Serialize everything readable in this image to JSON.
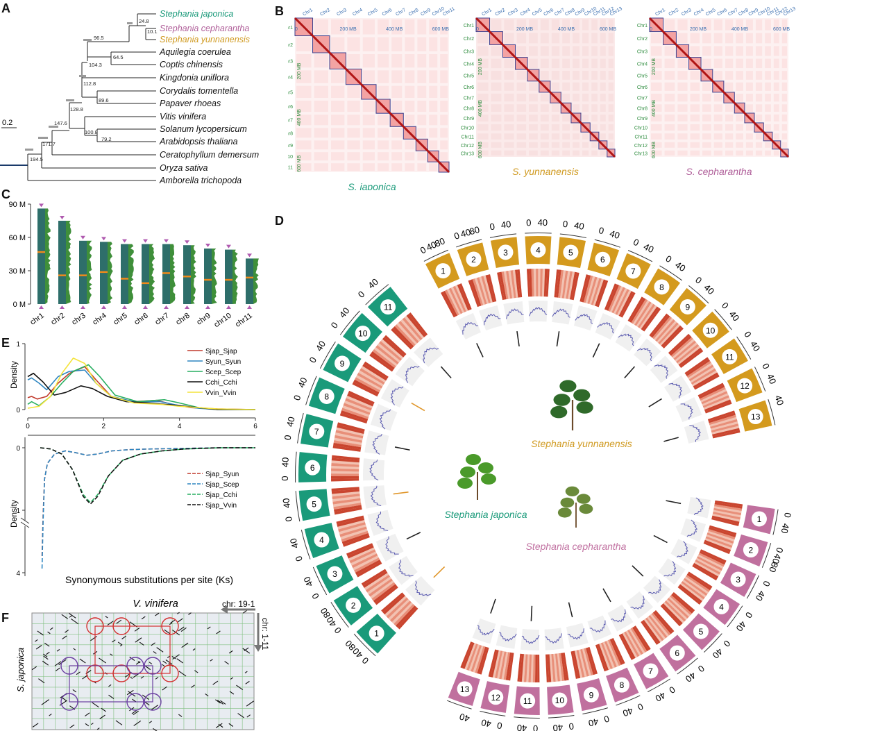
{
  "panels": {
    "A": "A",
    "B": "B",
    "C": "C",
    "D": "D",
    "E": "E",
    "F": "F"
  },
  "tree": {
    "scale_label": "0.2",
    "taxa": [
      {
        "name": "Stephania japonica",
        "color": "#1a9a7a"
      },
      {
        "name": "Stephania cepharantha",
        "color": "#b0609a"
      },
      {
        "name": "Stephania yunnanensis",
        "color": "#d09a20"
      },
      {
        "name": "Aquilegia coerulea",
        "color": "#111111"
      },
      {
        "name": "Coptis chinensis",
        "color": "#111111"
      },
      {
        "name": "Kingdonia uniflora",
        "color": "#111111"
      },
      {
        "name": "Corydalis tomentella",
        "color": "#111111"
      },
      {
        "name": "Papaver rhoeas",
        "color": "#111111"
      },
      {
        "name": "Vitis vinifera",
        "color": "#111111"
      },
      {
        "name": "Solanum lycopersicum",
        "color": "#111111"
      },
      {
        "name": "Arabidopsis thaliana",
        "color": "#111111"
      },
      {
        "name": "Ceratophyllum demersum",
        "color": "#111111"
      },
      {
        "name": "Oryza sativa",
        "color": "#111111"
      },
      {
        "name": "Amborella trichopoda",
        "color": "#111111"
      }
    ],
    "node_ages": [
      "24.8",
      "10.1",
      "96.5",
      "64.5",
      "104.3",
      "112.8",
      "89.6",
      "128.8",
      "147.6",
      "100.8",
      "79.2",
      "171.7",
      "194.5"
    ]
  },
  "hic": [
    {
      "species": "S. japonica",
      "color": "#1a9a7a",
      "chrs": [
        "Chr1",
        "Chr2",
        "Chr3",
        "Chr4",
        "Chr5",
        "Chr6",
        "Chr7",
        "Chr8",
        "Chr9",
        "Chr10",
        "Chr11"
      ],
      "axis_top": [
        "0",
        "200 MB",
        "400 MB",
        "600 MB"
      ],
      "axis_left": [
        "200 MB",
        "400 MB",
        "600 MB"
      ]
    },
    {
      "species": "S. yunnanensis",
      "color": "#d09a20",
      "chrs": [
        "Chr1",
        "Chr2",
        "Chr3",
        "Chr4",
        "Chr5",
        "Chr6",
        "Chr7",
        "Chr8",
        "Chr9",
        "Chr10",
        "Chr11",
        "Chr12",
        "Chr13"
      ],
      "axis_top": [
        "0",
        "200 MB",
        "400 MB",
        "600 MB"
      ],
      "axis_left": [
        "200 MB",
        "400 MB",
        "600 MB"
      ]
    },
    {
      "species": "S. cepharantha",
      "color": "#b0609a",
      "chrs": [
        "Chr1",
        "Chr2",
        "Chr3",
        "Chr4",
        "Chr5",
        "Chr6",
        "Chr7",
        "Chr8",
        "Chr9",
        "Chr10",
        "Chr11",
        "Chr12",
        "Chr13"
      ],
      "axis_top": [
        "0",
        "200 MB",
        "400 MB",
        "600 MB"
      ],
      "axis_left": [
        "200 MB",
        "400 MB",
        "600 MB"
      ]
    }
  ],
  "chart_data": [
    {
      "type": "bar",
      "panel": "C",
      "categories": [
        "chr1",
        "chr2",
        "chr3",
        "chr4",
        "chr5",
        "chr6",
        "chr7",
        "chr8",
        "chr9",
        "chr10",
        "chr11"
      ],
      "values": [
        86,
        75,
        57,
        56,
        54,
        54,
        54,
        53,
        50,
        49,
        41
      ],
      "centromere": [
        47,
        26,
        26,
        29,
        23,
        19,
        28,
        25,
        22,
        22,
        24
      ],
      "yticks": [
        "0 M",
        "30 M",
        "60 M",
        "90 M"
      ],
      "ylim": [
        0,
        90
      ]
    },
    {
      "type": "line",
      "panel": "E-top",
      "ylabel": "Density",
      "xticks": [
        "0",
        "2",
        "4",
        "6"
      ],
      "yticks": [
        "0",
        "1"
      ],
      "series": [
        {
          "name": "Sjap_Sjap",
          "color": "#c0392b",
          "x": [
            0,
            0.1,
            0.25,
            0.5,
            0.8,
            1.1,
            1.5,
            1.8,
            2.2,
            2.8,
            3.4,
            3.8,
            4.3,
            5,
            6
          ],
          "y": [
            0.18,
            0.2,
            0.16,
            0.2,
            0.4,
            0.55,
            0.65,
            0.45,
            0.2,
            0.12,
            0.14,
            0.08,
            0.03,
            0.01,
            0
          ]
        },
        {
          "name": "Syun_Syun",
          "color": "#2e86c1",
          "x": [
            0,
            0.1,
            0.3,
            0.5,
            0.8,
            1.1,
            1.5,
            1.8,
            2.2,
            2.8,
            3.5,
            4,
            4.5,
            5,
            6
          ],
          "y": [
            0.45,
            0.48,
            0.4,
            0.3,
            0.5,
            0.58,
            0.6,
            0.4,
            0.2,
            0.12,
            0.12,
            0.06,
            0.02,
            0,
            0
          ]
        },
        {
          "name": "Scep_Scep",
          "color": "#27ae60",
          "x": [
            0,
            0.1,
            0.3,
            0.6,
            0.9,
            1.2,
            1.6,
            1.9,
            2.3,
            2.9,
            3.6,
            4,
            4.5,
            5,
            6
          ],
          "y": [
            0.08,
            0.12,
            0.06,
            0.2,
            0.4,
            0.58,
            0.68,
            0.5,
            0.22,
            0.12,
            0.15,
            0.1,
            0.03,
            0,
            0
          ]
        },
        {
          "name": "Cchi_Cchi",
          "color": "#111111",
          "x": [
            0,
            0.15,
            0.4,
            0.7,
            1,
            1.4,
            1.7,
            2.1,
            2.6,
            3.2,
            3.8,
            4.5,
            5,
            6
          ],
          "y": [
            0.5,
            0.55,
            0.42,
            0.22,
            0.26,
            0.36,
            0.32,
            0.2,
            0.12,
            0.1,
            0.07,
            0.03,
            0,
            0
          ]
        },
        {
          "name": "Vvin_Vvin",
          "color": "#f4e33a",
          "x": [
            0,
            0.3,
            0.6,
            0.9,
            1.2,
            1.5,
            1.8,
            2.2,
            2.8,
            3.5,
            4,
            5,
            6
          ],
          "y": [
            0.02,
            0.05,
            0.2,
            0.55,
            0.78,
            0.7,
            0.4,
            0.2,
            0.1,
            0.08,
            0.05,
            0.01,
            0
          ]
        }
      ]
    },
    {
      "type": "line",
      "panel": "E-bottom",
      "ylabel": "Density",
      "xlabel": "Synonymous substitutions per site (Ks)",
      "yticks": [
        "0",
        "1",
        "4"
      ],
      "series": [
        {
          "name": "Sjap_Syun",
          "color": "#c0392b",
          "x": [
            0.05,
            0.08,
            0.12,
            0.2,
            0.4,
            0.7,
            1,
            1.3,
            1.6,
            2,
            2.5,
            3,
            4,
            5,
            6
          ],
          "y": [
            3.2,
            1.2,
            0.5,
            0.25,
            0.1,
            0.05,
            0.08,
            0.12,
            0.1,
            0.05,
            0.03,
            0.02,
            0.01,
            0,
            0
          ]
        },
        {
          "name": "Sjap_Scep",
          "color": "#2e86c1",
          "x": [
            0.05,
            0.08,
            0.12,
            0.2,
            0.4,
            0.7,
            1,
            1.3,
            1.6,
            2,
            2.5,
            3,
            4,
            5,
            6
          ],
          "y": [
            3.8,
            1.5,
            0.5,
            0.25,
            0.1,
            0.05,
            0.08,
            0.12,
            0.1,
            0.05,
            0.03,
            0.02,
            0.01,
            0,
            0
          ]
        },
        {
          "name": "Sjap_Cchi",
          "color": "#27ae60",
          "x": [
            0,
            0.3,
            0.6,
            0.9,
            1.2,
            1.4,
            1.6,
            1.9,
            2.3,
            2.8,
            3.4,
            4,
            5,
            6
          ],
          "y": [
            0,
            0.02,
            0.1,
            0.35,
            0.75,
            0.88,
            0.75,
            0.45,
            0.2,
            0.1,
            0.05,
            0.02,
            0,
            0
          ]
        },
        {
          "name": "Sjap_Vvin",
          "color": "#111111",
          "x": [
            0,
            0.3,
            0.6,
            0.9,
            1.2,
            1.4,
            1.6,
            1.9,
            2.3,
            2.8,
            3.4,
            4,
            5,
            6
          ],
          "y": [
            0,
            0.02,
            0.1,
            0.35,
            0.78,
            0.9,
            0.78,
            0.45,
            0.2,
            0.1,
            0.05,
            0.02,
            0,
            0
          ]
        }
      ]
    }
  ],
  "circos": {
    "yun": {
      "label": "Stephania yunnanensis",
      "color": "#d49a1e",
      "chrs": [
        "1",
        "2",
        "3",
        "4",
        "5",
        "6",
        "7",
        "8",
        "9",
        "10",
        "11",
        "12",
        "13"
      ],
      "ticks": [
        [
          "0",
          "40",
          "80"
        ],
        [
          "0",
          "40",
          "80"
        ],
        [
          "0",
          "40"
        ],
        [
          "0",
          "40"
        ],
        [
          "0",
          "40"
        ],
        [
          "0",
          "40"
        ],
        [
          "0",
          "40"
        ],
        [
          "0",
          "40"
        ],
        [
          "0",
          "40"
        ],
        [
          "0",
          "40"
        ],
        [
          "0",
          "40"
        ],
        [
          "0",
          "40"
        ],
        [
          "40"
        ]
      ]
    },
    "jap": {
      "label": "Stephania japonica",
      "color": "#1a9a7a",
      "chrs": [
        "1",
        "2",
        "3",
        "4",
        "5",
        "6",
        "7",
        "8",
        "9",
        "10",
        "11"
      ],
      "ticks": [
        [
          "0",
          "40",
          "80"
        ],
        [
          "0",
          "40",
          "80"
        ],
        [
          "0",
          "40"
        ],
        [
          "0",
          "40"
        ],
        [
          "0",
          "40"
        ],
        [
          "0",
          "40"
        ],
        [
          "0",
          "40"
        ],
        [
          "0",
          "40"
        ],
        [
          "0",
          "40"
        ],
        [
          "0",
          "40"
        ],
        [
          "0",
          "40"
        ]
      ]
    },
    "cep": {
      "label": "Stephania cepharantha",
      "color": "#c0709e",
      "chrs": [
        "1",
        "2",
        "3",
        "4",
        "5",
        "6",
        "7",
        "8",
        "9",
        "10",
        "11",
        "12",
        "13"
      ],
      "ticks": [
        [
          "0",
          "40"
        ],
        [
          "0",
          "40",
          "80"
        ],
        [
          "0",
          "40"
        ],
        [
          "0",
          "40"
        ],
        [
          "0",
          "40"
        ],
        [
          "0",
          "40"
        ],
        [
          "0",
          "40"
        ],
        [
          "0",
          "40"
        ],
        [
          "0",
          "40"
        ],
        [
          "0",
          "40"
        ],
        [
          "0",
          "40"
        ],
        [
          "0",
          "40"
        ],
        [
          "40"
        ]
      ]
    }
  },
  "dotplot": {
    "title": "V. vinifera",
    "ylabel": "S. japonica",
    "arrow_h": "chr: 19-1",
    "arrow_v": "chr: 1-11"
  }
}
